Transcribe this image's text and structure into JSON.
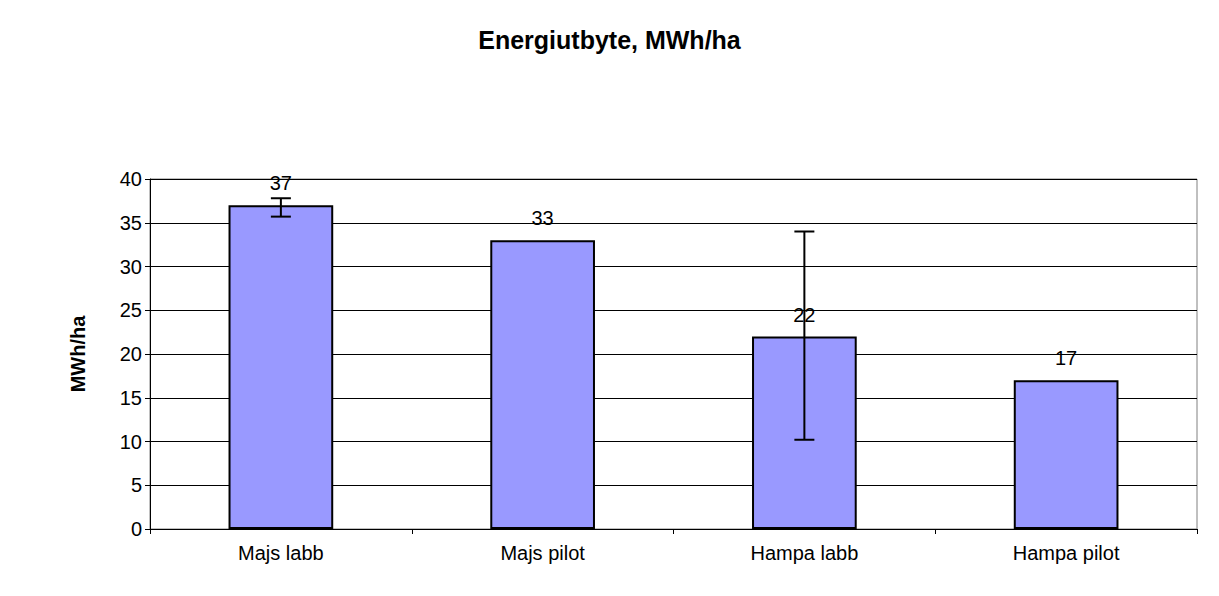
{
  "chart_data": {
    "type": "bar",
    "title": "Energiutbyte, MWh/ha",
    "y_label": "MWh/ha",
    "categories": [
      "Majs labb",
      "Majs pilot",
      "Hampa labb",
      "Hampa pilot"
    ],
    "values": [
      37,
      33,
      22,
      17
    ],
    "error_low": [
      35.7,
      null,
      10.2,
      null
    ],
    "error_high": [
      37.8,
      null,
      34,
      null
    ],
    "color": "#9999ff",
    "ylim": [
      0,
      40
    ],
    "yticks": [
      0,
      5,
      10,
      15,
      20,
      25,
      30,
      35,
      40
    ],
    "grid": true,
    "data_labels": true
  }
}
